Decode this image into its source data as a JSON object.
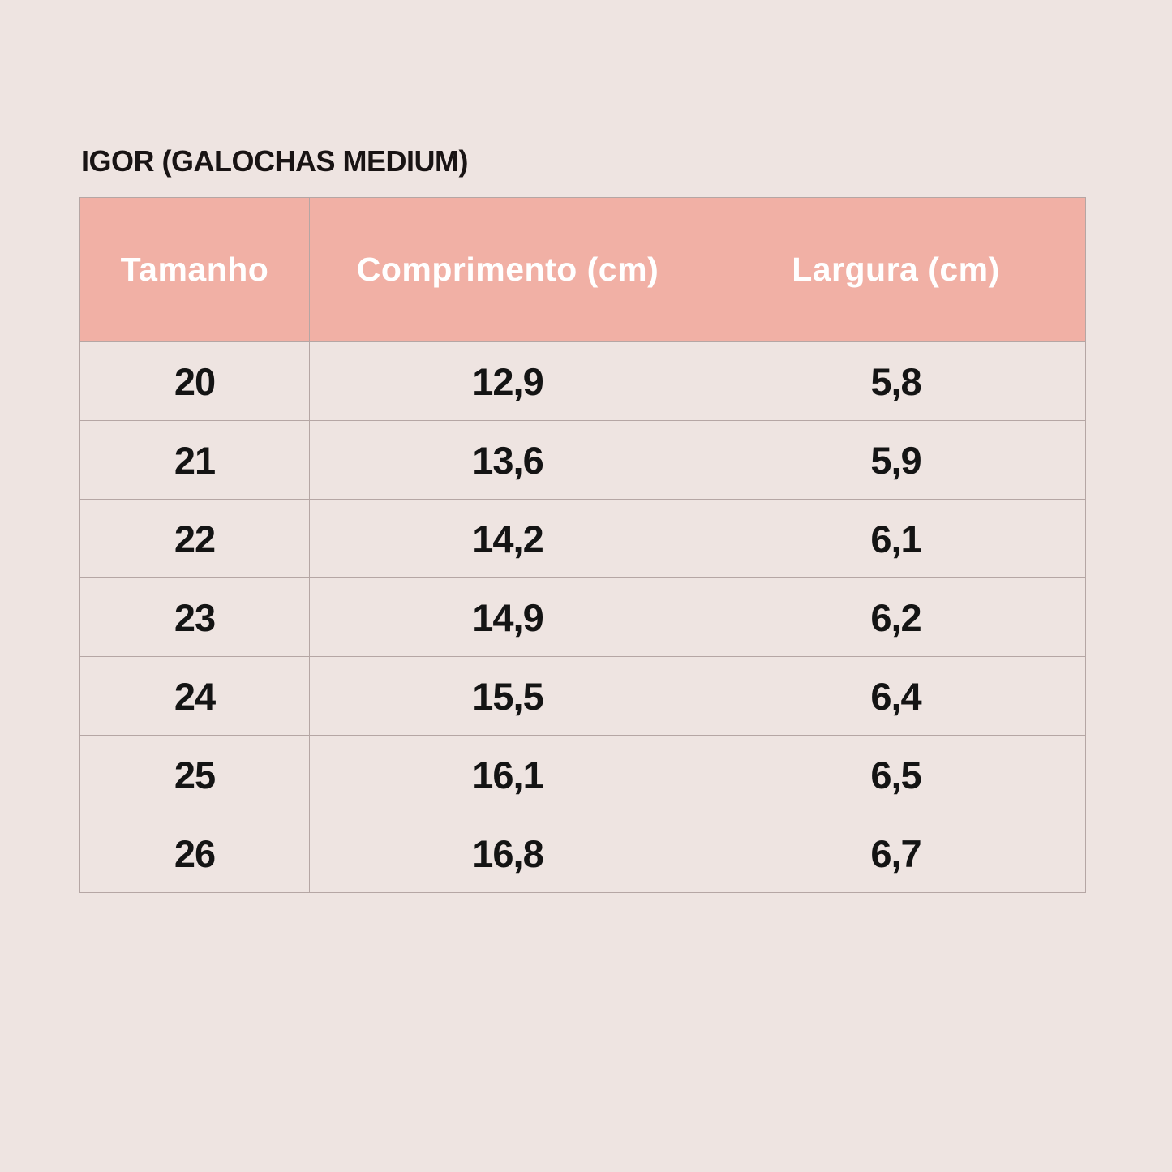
{
  "page": {
    "title": "IGOR (GALOCHAS MEDIUM)"
  },
  "chart_data": {
    "type": "table",
    "title": "IGOR (GALOCHAS MEDIUM)",
    "columns": [
      "Tamanho",
      "Comprimento (cm)",
      "Largura (cm)"
    ],
    "rows": [
      [
        "20",
        "12,9",
        "5,8"
      ],
      [
        "21",
        "13,6",
        "5,9"
      ],
      [
        "22",
        "14,2",
        "6,1"
      ],
      [
        "23",
        "14,9",
        "6,2"
      ],
      [
        "24",
        "15,5",
        "6,4"
      ],
      [
        "25",
        "16,1",
        "6,5"
      ],
      [
        "26",
        "16,8",
        "6,7"
      ]
    ]
  },
  "colors": {
    "page_background": "#EEE4E1",
    "header_background": "#F1B0A5",
    "header_text": "#FFFFFF",
    "body_text": "#141414",
    "border": "#B5A6A4"
  }
}
